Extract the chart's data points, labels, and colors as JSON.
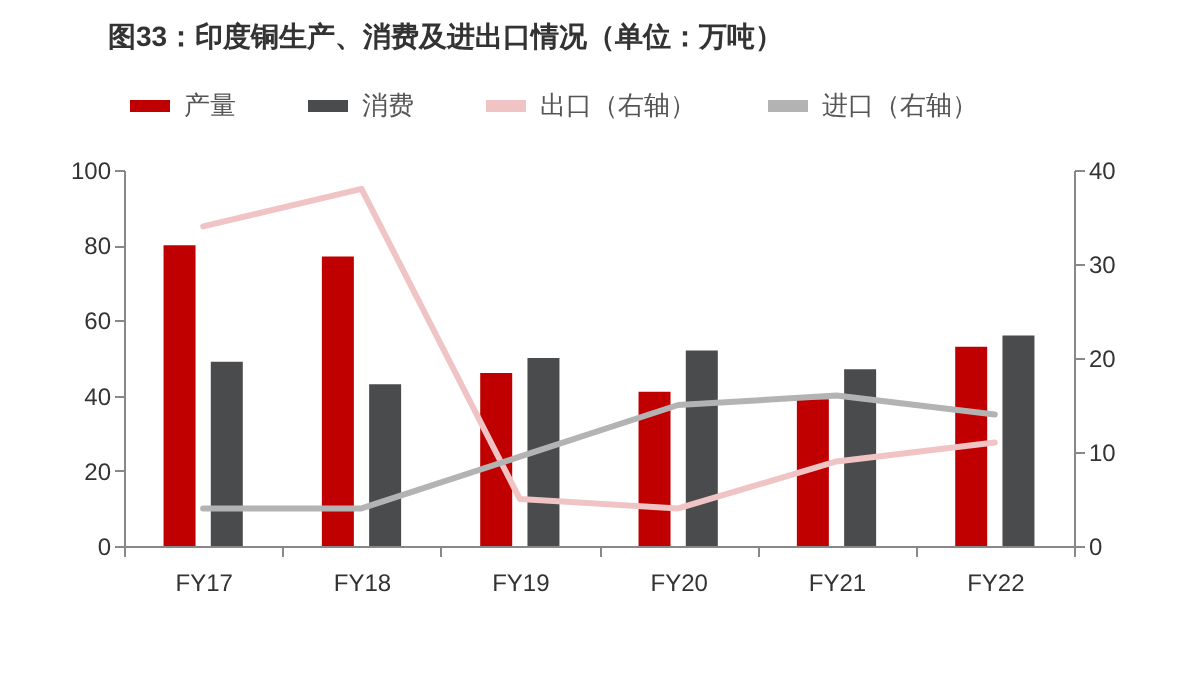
{
  "chart_data": {
    "type": "bar",
    "title": "图33：印度铜生产、消费及进出口情况（单位：万吨）",
    "categories": [
      "FY17",
      "FY18",
      "FY19",
      "FY20",
      "FY21",
      "FY22"
    ],
    "series": [
      {
        "name": "产量",
        "color": "#c00000",
        "values": [
          80,
          77,
          46,
          41,
          39,
          53
        ]
      },
      {
        "name": "消费",
        "color": "#4a4b4d",
        "values": [
          49,
          43,
          50,
          52,
          47,
          56
        ]
      },
      {
        "name": "出口（右轴）",
        "type": "line",
        "axis": "y2",
        "color": "#f0c4c4",
        "values": [
          34,
          38,
          5,
          4,
          9,
          11
        ]
      },
      {
        "name": "进口（右轴）",
        "type": "line",
        "axis": "y2",
        "color": "#b3b3b3",
        "values": [
          4,
          4,
          9.5,
          15,
          16,
          14
        ]
      }
    ],
    "ylim": [
      0,
      100
    ],
    "yticks": [
      0,
      20,
      40,
      60,
      80,
      100
    ],
    "y2lim": [
      0,
      40
    ],
    "y2ticks": [
      0,
      10,
      20,
      30,
      40
    ],
    "legend": "top",
    "grid": false
  }
}
